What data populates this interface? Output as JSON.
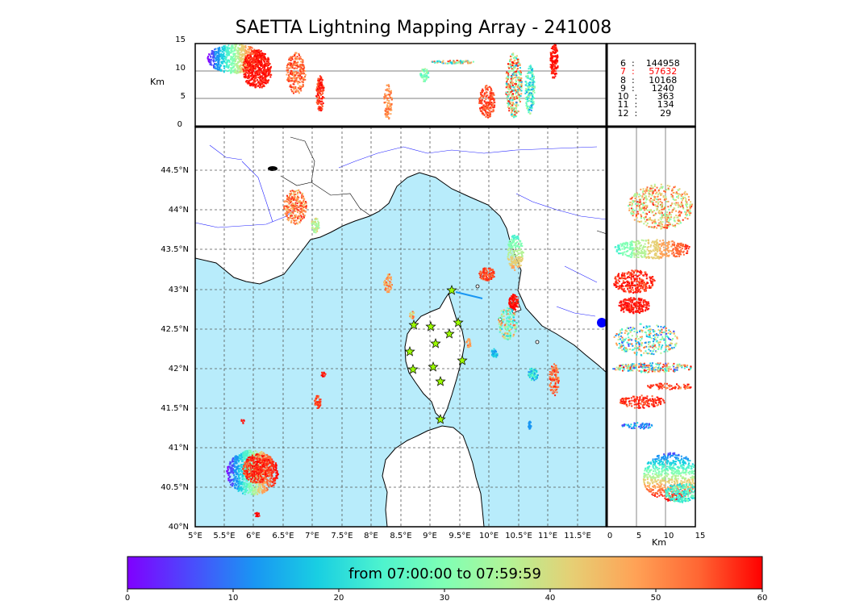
{
  "title": "SAETTA Lightning Mapping Array - 241008",
  "alt_panel": {
    "unit_label": "Km",
    "ticks": [
      "0",
      "5",
      "10",
      "15"
    ]
  },
  "side_panel": {
    "unit_label": "Km",
    "ticks": [
      "0",
      "5",
      "10",
      "15"
    ]
  },
  "map": {
    "lon_ticks": [
      "5°E",
      "5.5°E",
      "6°E",
      "6.5°E",
      "7°E",
      "7.5°E",
      "8°E",
      "8.5°E",
      "9°E",
      "9.5°E",
      "10°E",
      "10.5°E",
      "11°E",
      "11.5°E"
    ],
    "lat_ticks": [
      "40°N",
      "40.5°N",
      "41°N",
      "41.5°N",
      "42°N",
      "42.5°N",
      "43°N",
      "43.5°N",
      "44°N",
      "44.5°N"
    ],
    "lon_range": [
      5.0,
      12.0
    ],
    "lat_range": [
      40.0,
      44.95
    ],
    "sea_color": "#b8ecfb",
    "station_color": "#9cff00"
  },
  "station_count_legend": [
    {
      "stations": "6",
      "count": "144958",
      "highlight": false
    },
    {
      "stations": "7",
      "count": "57632",
      "highlight": true
    },
    {
      "stations": "8",
      "count": "10168",
      "highlight": false
    },
    {
      "stations": "9",
      "count": "1240",
      "highlight": false
    },
    {
      "stations": "10",
      "count": "363",
      "highlight": false
    },
    {
      "stations": "11",
      "count": "134",
      "highlight": false
    },
    {
      "stations": "12",
      "count": "29",
      "highlight": false
    }
  ],
  "colorbar": {
    "label": "from 07:00:00 to 07:59:59",
    "ticks": [
      "0",
      "10",
      "20",
      "30",
      "40",
      "50",
      "60"
    ],
    "range": [
      0,
      60
    ],
    "colors": [
      "#8000ff",
      "#4b4bfc",
      "#1996f3",
      "#19cfe2",
      "#4df3ce",
      "#80ffb4",
      "#b3f396",
      "#e6cf74",
      "#ffa256",
      "#ff6633",
      "#ff2a14",
      "#ff0000"
    ]
  }
}
